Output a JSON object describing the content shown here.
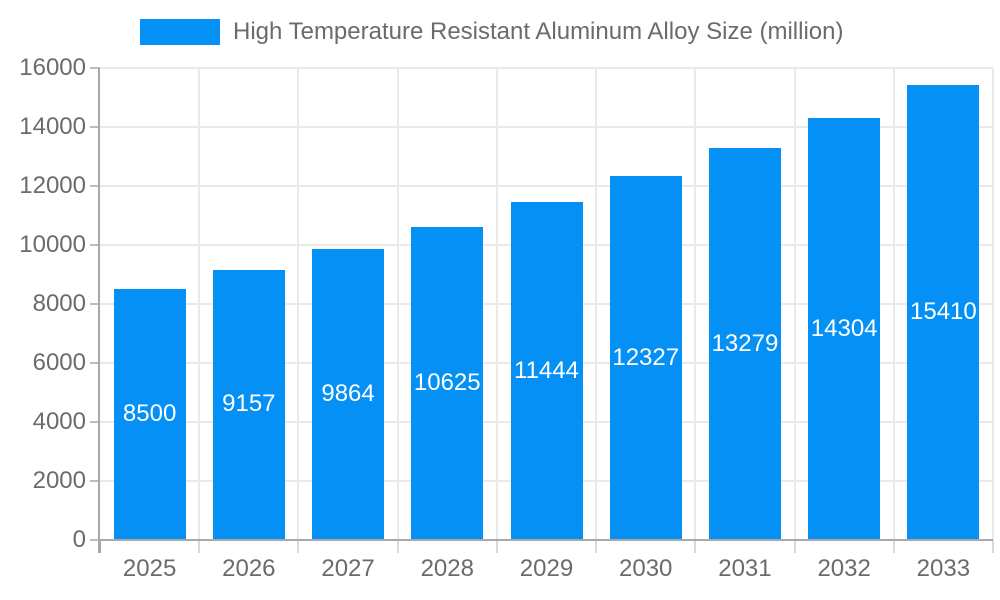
{
  "chart_data": {
    "type": "bar",
    "title": "",
    "legend": [
      "High Temperature Resistant Aluminum Alloy Size (million)"
    ],
    "legend_position": "top",
    "categories": [
      "2025",
      "2026",
      "2027",
      "2028",
      "2029",
      "2030",
      "2031",
      "2032",
      "2033"
    ],
    "values": [
      8500,
      9157,
      9864,
      10625,
      11444,
      12327,
      13279,
      14304,
      15410
    ],
    "xlabel": "",
    "ylabel": "",
    "ylim": [
      0,
      16000
    ],
    "y_tick_step": 2000,
    "y_ticks": [
      0,
      2000,
      4000,
      6000,
      8000,
      10000,
      12000,
      14000,
      16000
    ],
    "grid": true,
    "data_labels": "inside-center",
    "style": {
      "bar_color": "#0590f5",
      "data_label_color": "#ffffff",
      "tick_text_color": "#6b6b6b",
      "grid_color": "#e9e9e9",
      "axis_color": "#a8a8a8",
      "y_tick_color": "#bdbdbd",
      "x_tick_color": "#d9d9d9",
      "background": "#ffffff"
    }
  }
}
